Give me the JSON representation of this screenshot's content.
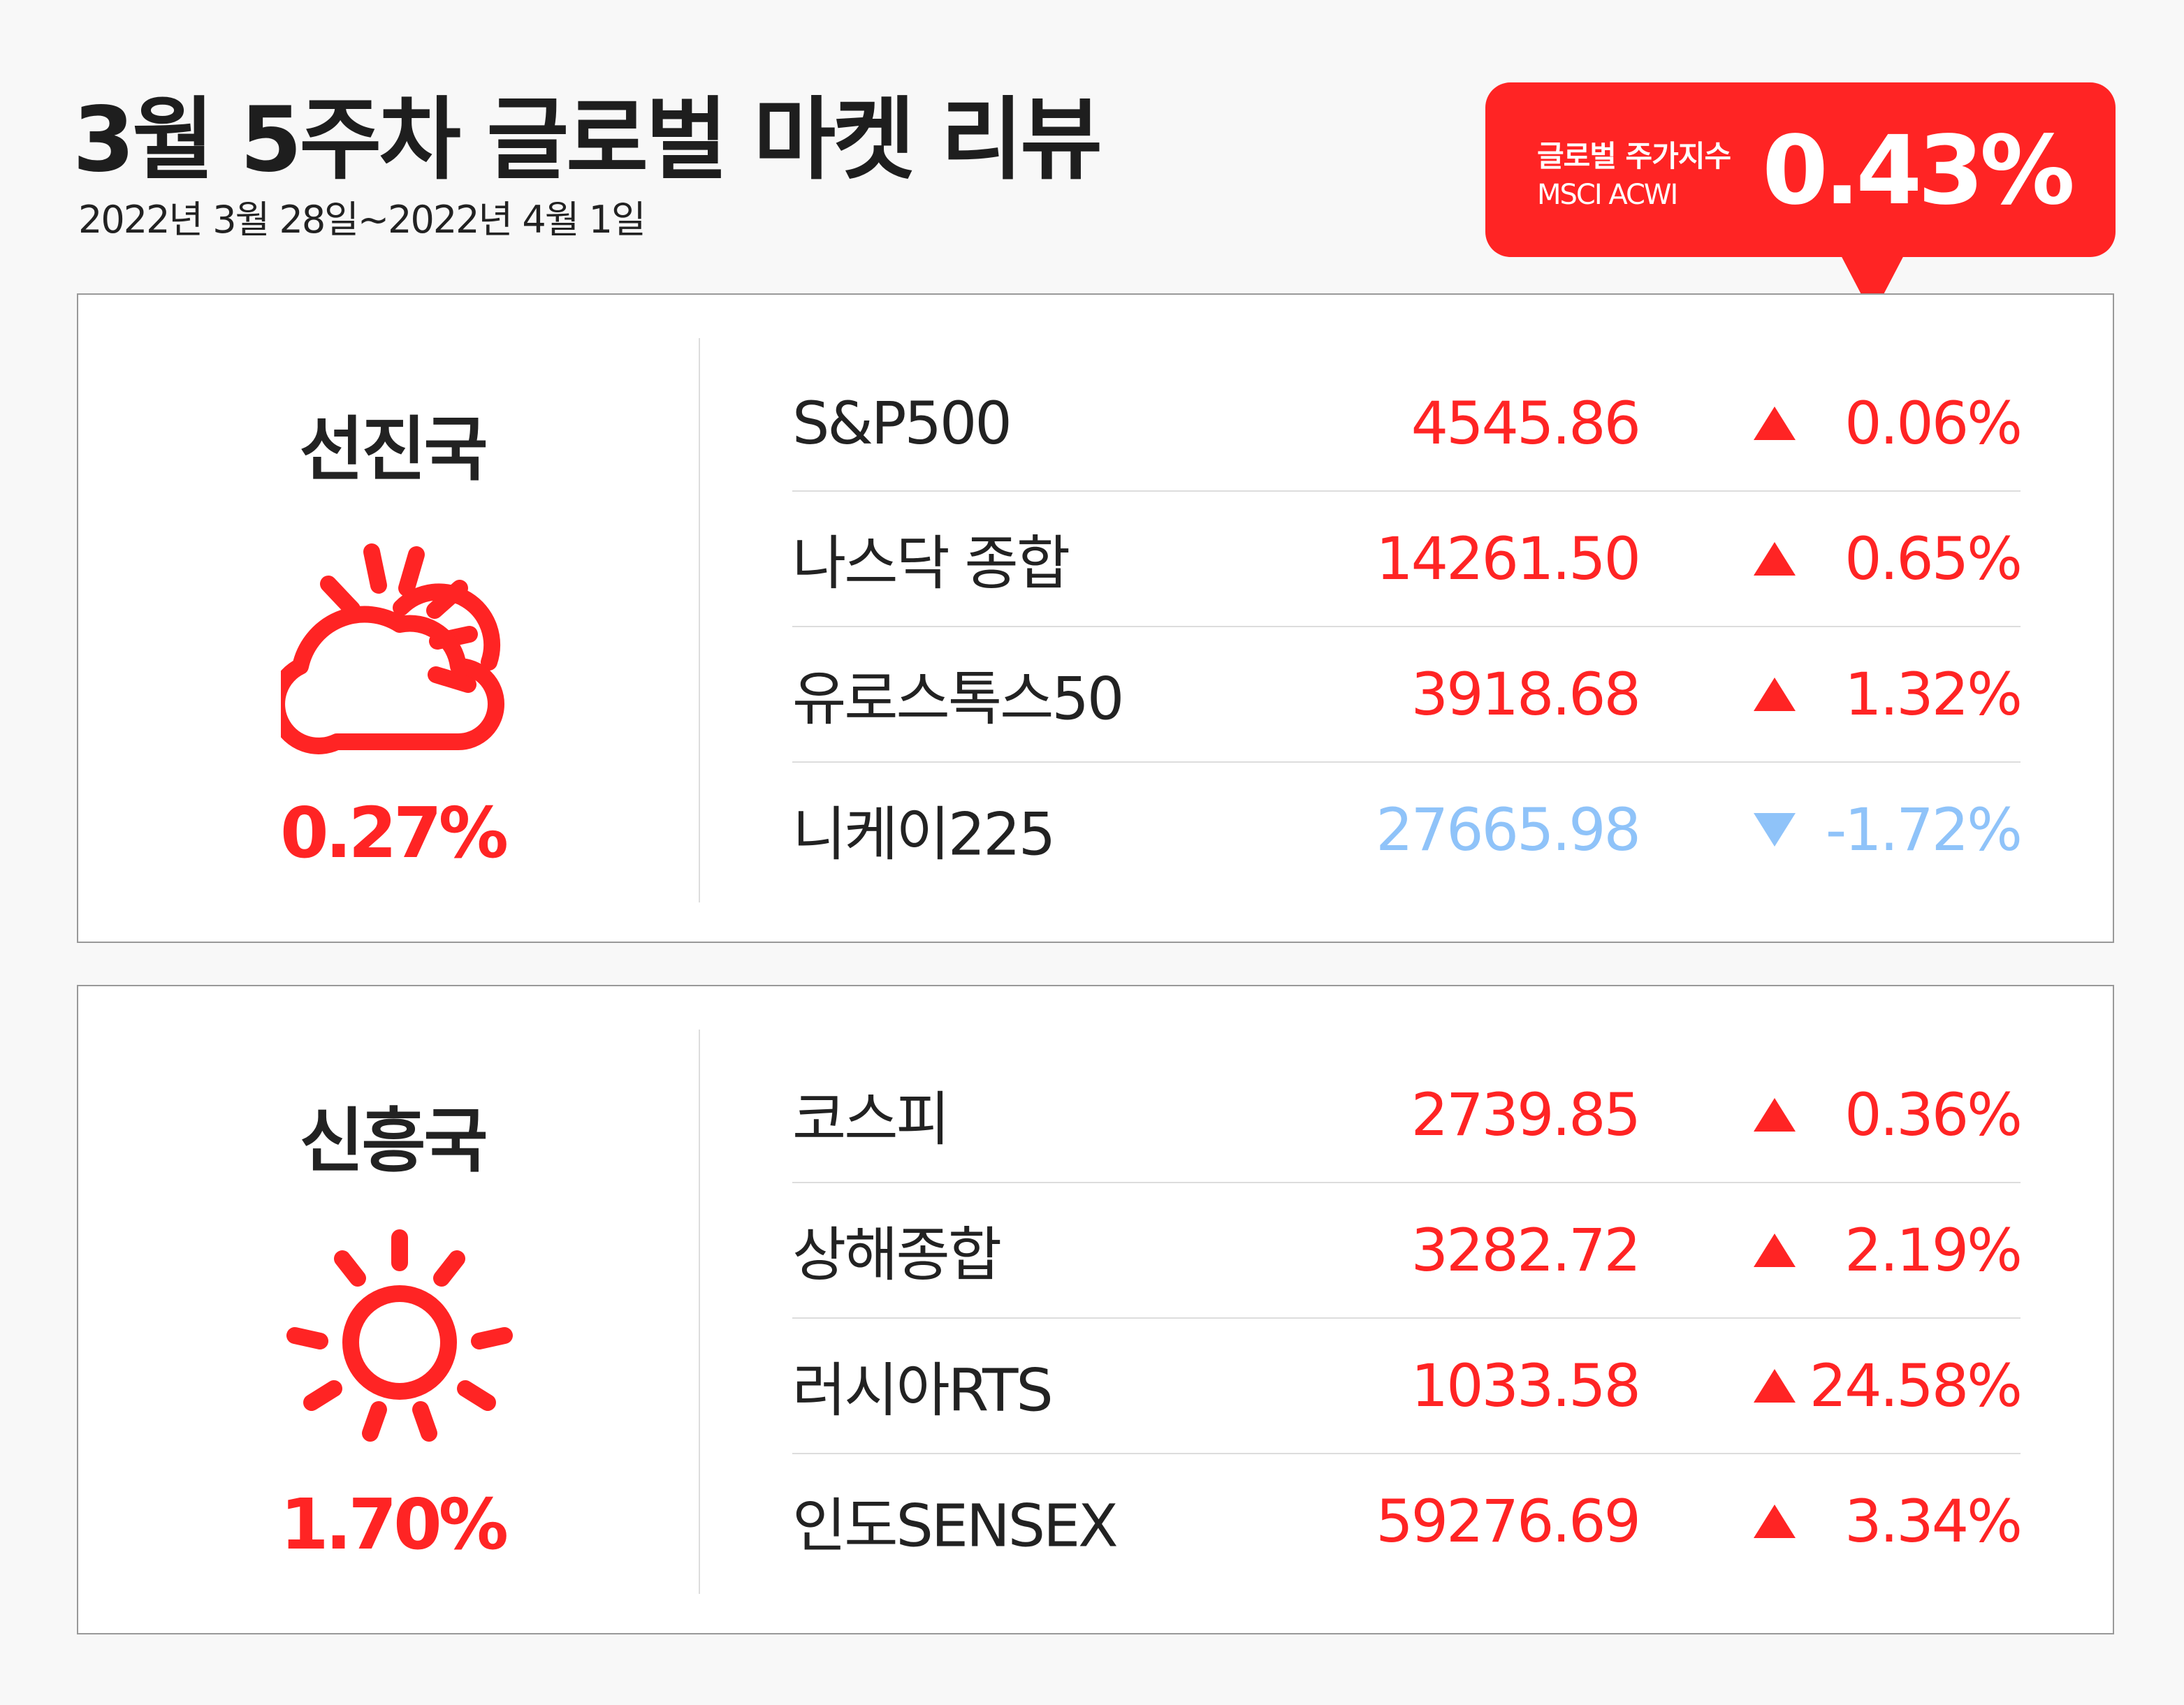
{
  "header": {
    "title": "3월 5주차 글로벌 마켓 리뷰",
    "date_range": "2022년 3월 28일~2022년 4월 1일"
  },
  "badge": {
    "label": "글로벌 주가지수",
    "index_name": "MSCI ACWI",
    "value": "0.43%"
  },
  "colors": {
    "up": "#ff2424",
    "down": "#8fc3f9",
    "accent": "#ff2424"
  },
  "panels": [
    {
      "region": "선진국",
      "icon": "partly-sunny-icon",
      "change": "0.27%",
      "rows": [
        {
          "name": "S&P500",
          "value": "4545.86",
          "direction": "up",
          "change": "0.06%"
        },
        {
          "name": "나스닥 종합",
          "value": "14261.50",
          "direction": "up",
          "change": "0.65%"
        },
        {
          "name": "유로스톡스50",
          "value": "3918.68",
          "direction": "up",
          "change": "1.32%"
        },
        {
          "name": "니케이225",
          "value": "27665.98",
          "direction": "down",
          "change": "-1.72%"
        }
      ]
    },
    {
      "region": "신흥국",
      "icon": "sun-icon",
      "change": "1.70%",
      "rows": [
        {
          "name": "코스피",
          "value": "2739.85",
          "direction": "up",
          "change": "0.36%"
        },
        {
          "name": "상해종합",
          "value": "3282.72",
          "direction": "up",
          "change": "2.19%"
        },
        {
          "name": "러시아RTS",
          "value": "1033.58",
          "direction": "up",
          "change": "24.58%"
        },
        {
          "name": "인도SENSEX",
          "value": "59276.69",
          "direction": "up",
          "change": "3.34%"
        }
      ]
    }
  ]
}
